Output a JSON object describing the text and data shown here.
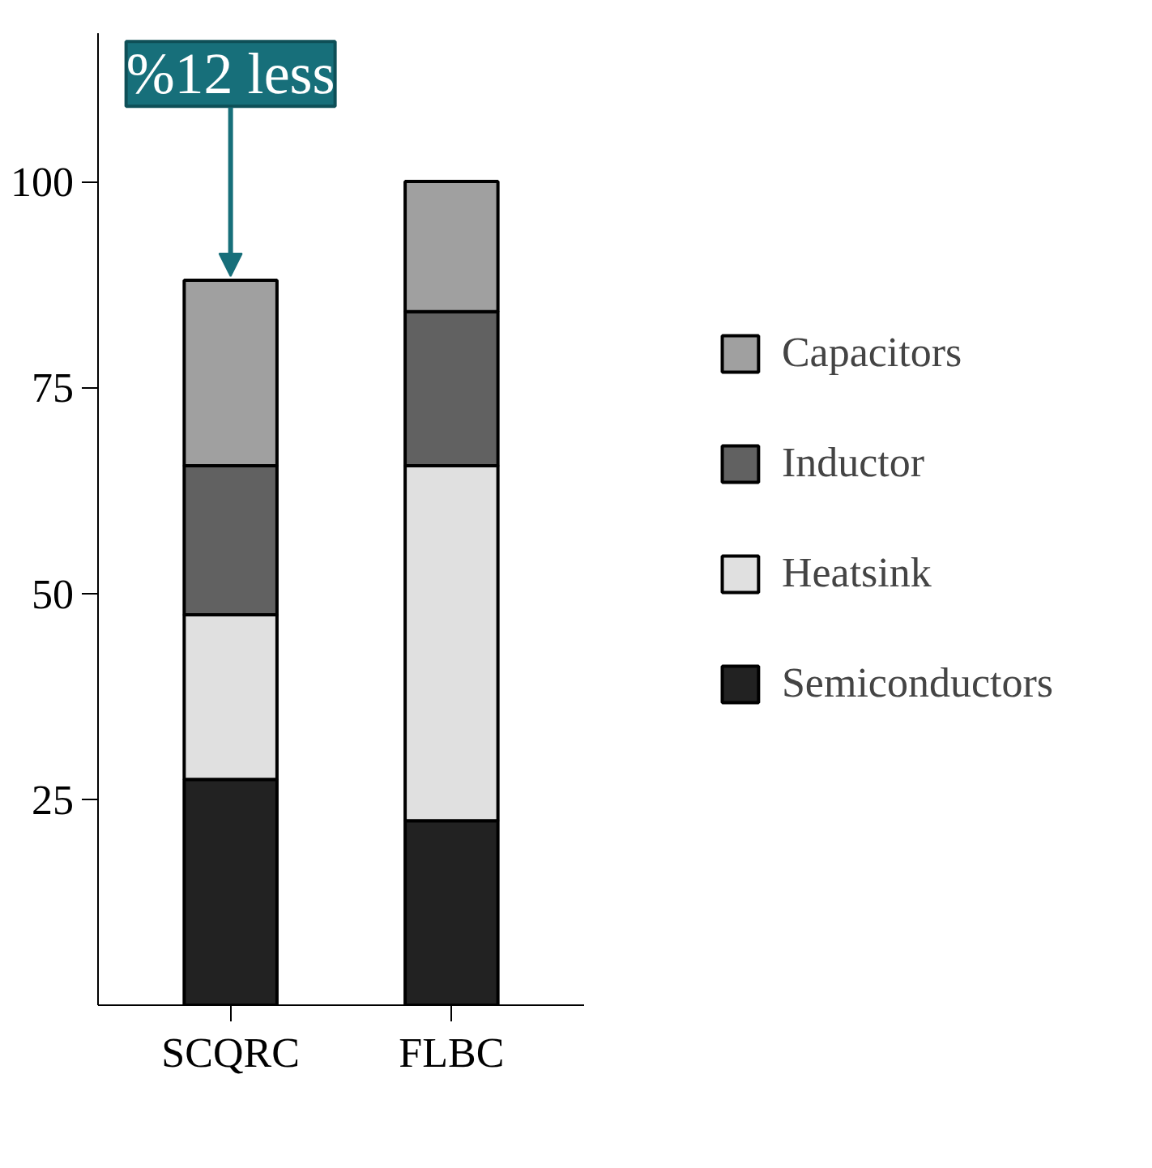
{
  "chart_data": {
    "type": "bar",
    "stacked": true,
    "categories": [
      "SCQRC",
      "FLBC"
    ],
    "series": [
      {
        "name": "Semiconductors",
        "color": "#222222",
        "values": [
          27.4,
          22.4
        ]
      },
      {
        "name": "Heatsink",
        "color": "#e0e0e0",
        "values": [
          20,
          43.1
        ]
      },
      {
        "name": "Inductor",
        "color": "#616161",
        "values": [
          18.1,
          18.7
        ]
      },
      {
        "name": "Capacitors",
        "color": "#a0a0a0",
        "values": [
          22.5,
          15.8
        ]
      }
    ],
    "ylim": [
      0,
      118
    ],
    "yticks": [
      25,
      50,
      75,
      100
    ],
    "grid": false,
    "legend": "right",
    "annotations": [
      {
        "text": "%12 less",
        "x": "SCQRC",
        "y": 88
      }
    ]
  }
}
